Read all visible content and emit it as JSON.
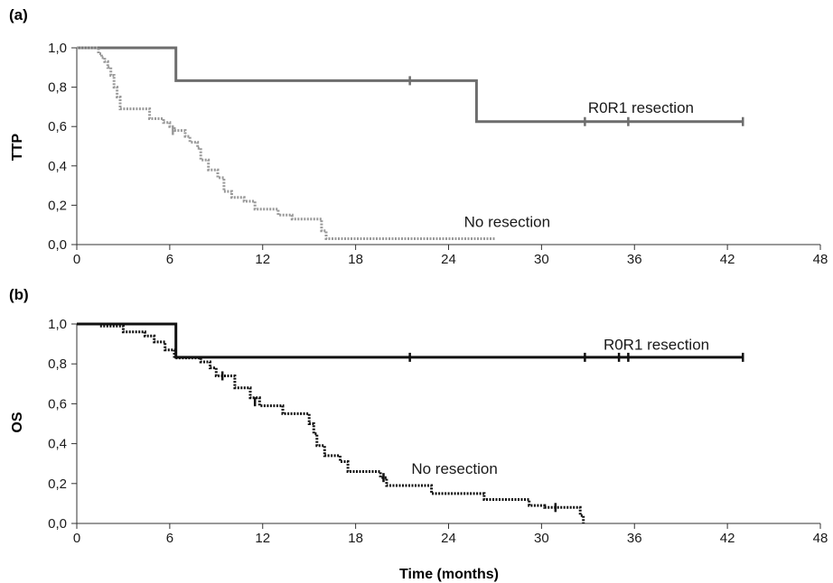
{
  "chart_data": [
    {
      "type": "line",
      "panel_label": "(a)",
      "xlabel": "",
      "ylabel": "TTP",
      "xlim": [
        0,
        48
      ],
      "ylim": [
        0,
        1
      ],
      "x_ticks": [
        0,
        6,
        12,
        18,
        24,
        30,
        36,
        42,
        48
      ],
      "y_ticks": [
        "0,0",
        "0,2",
        "0,4",
        "0,6",
        "0,8",
        "1,0"
      ],
      "grid": false,
      "series": [
        {
          "name": "R0R1 resection",
          "color": "#6d6d6d",
          "style": "solid",
          "step_points": [
            [
              0,
              1.0
            ],
            [
              6.4,
              1.0
            ],
            [
              6.4,
              0.833
            ],
            [
              25.8,
              0.833
            ],
            [
              25.8,
              0.625
            ],
            [
              43,
              0.625
            ]
          ],
          "censored": [
            [
              21.5,
              0.833
            ],
            [
              32.8,
              0.625
            ],
            [
              35.6,
              0.625
            ],
            [
              43,
              0.625
            ]
          ],
          "label_position": [
            33,
            0.67
          ]
        },
        {
          "name": "No resection",
          "color": "#9a9a9a",
          "style": "dotted",
          "step_points": [
            [
              0,
              1.0
            ],
            [
              1.4,
              1.0
            ],
            [
              1.4,
              0.97
            ],
            [
              1.6,
              0.97
            ],
            [
              1.6,
              0.95
            ],
            [
              1.8,
              0.95
            ],
            [
              1.8,
              0.93
            ],
            [
              2.0,
              0.93
            ],
            [
              2.0,
              0.9
            ],
            [
              2.2,
              0.9
            ],
            [
              2.2,
              0.86
            ],
            [
              2.4,
              0.86
            ],
            [
              2.4,
              0.8
            ],
            [
              2.6,
              0.8
            ],
            [
              2.6,
              0.75
            ],
            [
              2.8,
              0.75
            ],
            [
              2.8,
              0.69
            ],
            [
              4.7,
              0.69
            ],
            [
              4.7,
              0.64
            ],
            [
              5.6,
              0.64
            ],
            [
              5.6,
              0.62
            ],
            [
              6.0,
              0.62
            ],
            [
              6.0,
              0.6
            ],
            [
              6.3,
              0.6
            ],
            [
              6.3,
              0.58
            ],
            [
              7.0,
              0.58
            ],
            [
              7.0,
              0.55
            ],
            [
              7.3,
              0.55
            ],
            [
              7.3,
              0.52
            ],
            [
              7.8,
              0.52
            ],
            [
              7.8,
              0.49
            ],
            [
              8.0,
              0.49
            ],
            [
              8.0,
              0.43
            ],
            [
              8.5,
              0.43
            ],
            [
              8.5,
              0.38
            ],
            [
              9.1,
              0.38
            ],
            [
              9.1,
              0.34
            ],
            [
              9.5,
              0.34
            ],
            [
              9.5,
              0.27
            ],
            [
              10.0,
              0.27
            ],
            [
              10.0,
              0.24
            ],
            [
              10.8,
              0.24
            ],
            [
              10.8,
              0.22
            ],
            [
              11.5,
              0.22
            ],
            [
              11.5,
              0.18
            ],
            [
              13.0,
              0.18
            ],
            [
              13.0,
              0.15
            ],
            [
              13.9,
              0.15
            ],
            [
              13.9,
              0.13
            ],
            [
              15.8,
              0.13
            ],
            [
              15.8,
              0.07
            ],
            [
              16.1,
              0.07
            ],
            [
              16.1,
              0.03
            ],
            [
              27.0,
              0.03
            ]
          ],
          "censored": [
            [
              6.2,
              0.58
            ]
          ],
          "label_position": [
            25,
            0.09
          ]
        }
      ]
    },
    {
      "type": "line",
      "panel_label": "(b)",
      "xlabel": "Time (months)",
      "ylabel": "OS",
      "xlim": [
        0,
        48
      ],
      "ylim": [
        0,
        1
      ],
      "x_ticks": [
        0,
        6,
        12,
        18,
        24,
        30,
        36,
        42,
        48
      ],
      "y_ticks": [
        "0,0",
        "0,2",
        "0,4",
        "0,6",
        "0,8",
        "1,0"
      ],
      "grid": false,
      "series": [
        {
          "name": "R0R1 resection",
          "color": "#111111",
          "style": "solid",
          "step_points": [
            [
              0,
              1.0
            ],
            [
              6.4,
              1.0
            ],
            [
              6.4,
              0.833
            ],
            [
              43,
              0.833
            ]
          ],
          "censored": [
            [
              21.5,
              0.833
            ],
            [
              32.8,
              0.833
            ],
            [
              35.0,
              0.833
            ],
            [
              35.6,
              0.833
            ],
            [
              43,
              0.833
            ]
          ],
          "label_position": [
            34,
            0.87
          ]
        },
        {
          "name": "No resection",
          "color": "#111111",
          "style": "dotted",
          "step_points": [
            [
              0,
              1.0
            ],
            [
              1.5,
              1.0
            ],
            [
              1.5,
              0.99
            ],
            [
              3.0,
              0.99
            ],
            [
              3.0,
              0.96
            ],
            [
              4.4,
              0.96
            ],
            [
              4.4,
              0.94
            ],
            [
              5.0,
              0.94
            ],
            [
              5.0,
              0.91
            ],
            [
              5.7,
              0.91
            ],
            [
              5.7,
              0.87
            ],
            [
              6.3,
              0.87
            ],
            [
              6.3,
              0.83
            ],
            [
              8.0,
              0.83
            ],
            [
              8.0,
              0.81
            ],
            [
              8.6,
              0.81
            ],
            [
              8.6,
              0.78
            ],
            [
              9.0,
              0.78
            ],
            [
              9.0,
              0.74
            ],
            [
              10.2,
              0.74
            ],
            [
              10.2,
              0.68
            ],
            [
              11.2,
              0.68
            ],
            [
              11.2,
              0.63
            ],
            [
              11.8,
              0.63
            ],
            [
              11.8,
              0.59
            ],
            [
              13.3,
              0.59
            ],
            [
              13.3,
              0.55
            ],
            [
              15.0,
              0.55
            ],
            [
              15.0,
              0.5
            ],
            [
              15.3,
              0.5
            ],
            [
              15.3,
              0.45
            ],
            [
              15.5,
              0.45
            ],
            [
              15.5,
              0.39
            ],
            [
              16.0,
              0.39
            ],
            [
              16.0,
              0.34
            ],
            [
              17.0,
              0.34
            ],
            [
              17.0,
              0.31
            ],
            [
              17.5,
              0.31
            ],
            [
              17.5,
              0.26
            ],
            [
              19.6,
              0.26
            ],
            [
              19.6,
              0.23
            ],
            [
              20.0,
              0.23
            ],
            [
              20.0,
              0.19
            ],
            [
              22.9,
              0.19
            ],
            [
              22.9,
              0.15
            ],
            [
              26.3,
              0.15
            ],
            [
              26.3,
              0.12
            ],
            [
              29.2,
              0.12
            ],
            [
              29.2,
              0.09
            ],
            [
              30.2,
              0.09
            ],
            [
              30.2,
              0.08
            ],
            [
              32.5,
              0.08
            ],
            [
              32.5,
              0.04
            ],
            [
              32.7,
              0.04
            ],
            [
              32.7,
              0.0
            ]
          ],
          "censored": [
            [
              9.4,
              0.74
            ],
            [
              11.5,
              0.61
            ],
            [
              19.8,
              0.23
            ],
            [
              30.9,
              0.08
            ]
          ],
          "label_position": [
            21.6,
            0.25
          ]
        }
      ]
    }
  ]
}
